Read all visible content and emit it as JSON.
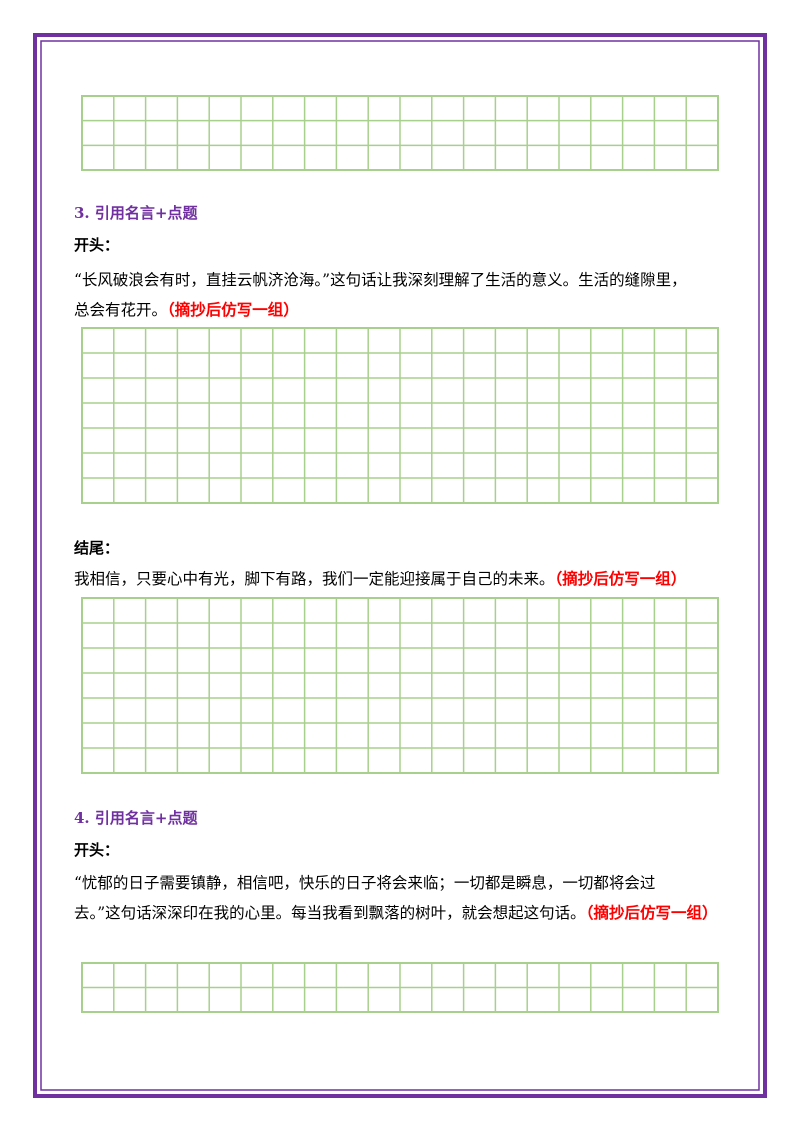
{
  "sections": [
    {
      "heading": "3. 引用名言+点题",
      "parts": [
        {
          "label": "开头：",
          "lines": [
            "“长风破浪会有时，直挂云帆济沧海。”这句话让我深刻理解了生活的意义。生活的缝隙里，",
            "总会有花开。"
          ],
          "note": "（摘抄后仿写一组）"
        },
        {
          "label": "结尾：",
          "lines": [
            "我相信，只要心中有光，脚下有路，我们一定能迎接属于自己的未来。"
          ],
          "note": "（摘抄后仿写一组）"
        }
      ]
    },
    {
      "heading": "4. 引用名言+点题",
      "parts": [
        {
          "label": "开头：",
          "lines": [
            "“忧郁的日子需要镇静，相信吧，快乐的日子将会来临；一切都是瞬息，一切都将会过",
            "去。”这句话深深印在我的心里。每当我看到飘落的树叶，就会想起这句话。"
          ],
          "note": "（摘抄后仿写一组）"
        }
      ]
    }
  ]
}
